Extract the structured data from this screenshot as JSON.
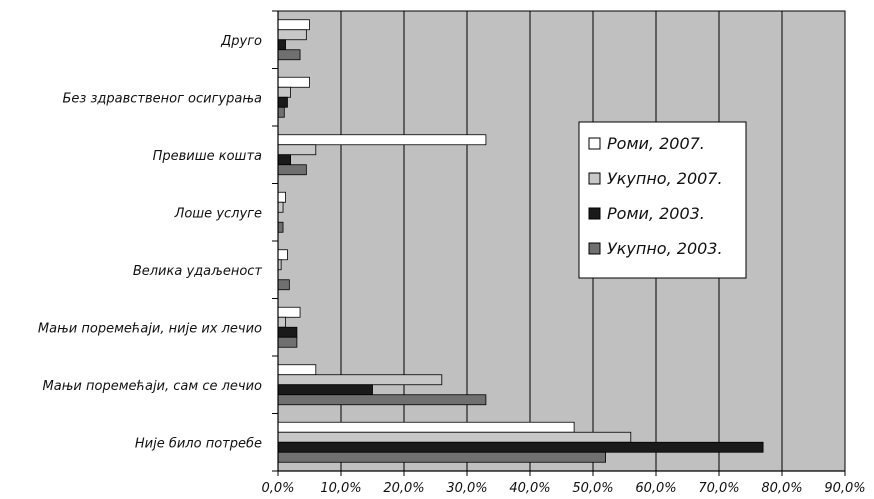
{
  "chart_data": {
    "type": "bar",
    "orientation": "horizontal",
    "categories": [
      "Друго",
      "Без здравственог осигурања",
      "Превише кошта",
      "Лоше услуге",
      "Велика удаљеност",
      "Мањи поремећаји, није их лечио",
      "Мањи поремећаји, сам се лечио",
      "Није било потребе"
    ],
    "series": [
      {
        "name": "Роми, 2007.",
        "color": "#ffffff",
        "values": [
          5.0,
          5.0,
          33.0,
          1.2,
          1.5,
          3.5,
          6.0,
          47.0
        ]
      },
      {
        "name": "Укупно, 2007.",
        "color": "#c8c8c8",
        "values": [
          4.5,
          2.0,
          6.0,
          0.8,
          0.5,
          1.2,
          26.0,
          56.0
        ]
      },
      {
        "name": "Роми, 2003.",
        "color": "#1a1a1a",
        "values": [
          1.2,
          1.5,
          2.0,
          0.0,
          0.0,
          3.0,
          15.0,
          77.0
        ]
      },
      {
        "name": "Укупно, 2003.",
        "color": "#707070",
        "values": [
          3.5,
          1.0,
          4.5,
          0.8,
          1.8,
          3.0,
          33.0,
          52.0
        ]
      }
    ],
    "x_ticks": [
      "0,0%",
      "10,0%",
      "20,0%",
      "30,0%",
      "40,0%",
      "50,0%",
      "60,0%",
      "70,0%",
      "80,0%",
      "90,0%"
    ],
    "xlim": [
      0,
      90
    ],
    "grid": true,
    "legend_position": "right",
    "plot_background": "#c0c0c0"
  }
}
